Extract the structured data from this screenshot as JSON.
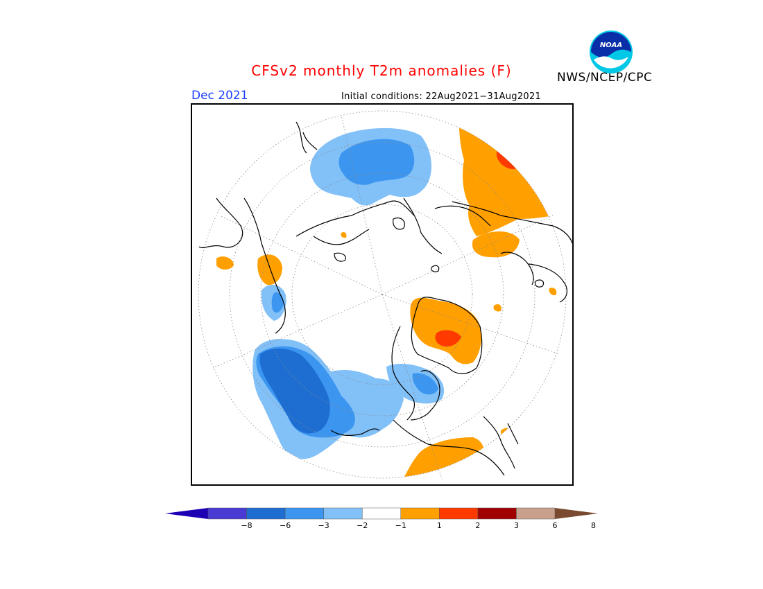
{
  "title": "CFSv2 monthly T2m anomalies (F)",
  "org": "NWS/NCEP/CPC",
  "logo_text": "NOAA",
  "month": "Dec 2021",
  "initial_conditions": "Initial conditions: 22Aug2021−31Aug2021",
  "colorbar": {
    "colors": [
      "#1e00b4",
      "#4a3ad4",
      "#1e6ed2",
      "#3c96f0",
      "#82c0f8",
      "#ffffff",
      "#ffa000",
      "#ff3a00",
      "#a00000",
      "#c8a08c",
      "#7a4a30"
    ],
    "tick_labels": [
      "−8",
      "−6",
      "−3",
      "−2",
      "−1",
      "1",
      "2",
      "3",
      "6",
      "8"
    ]
  },
  "map_colors": {
    "cold_1": "#82c0f8",
    "cold_2": "#3c96f0",
    "cold_3": "#1e6ed2",
    "warm_1": "#ffa000",
    "warm_2": "#ff3a00",
    "coast": "#000000",
    "grid": "#888888"
  }
}
